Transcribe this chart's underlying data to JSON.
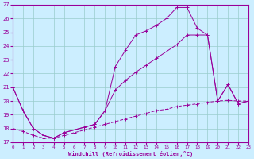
{
  "xlabel": "Windchill (Refroidissement éolien,°C)",
  "background_color": "#cceeff",
  "line_color": "#990099",
  "grid_color": "#99cccc",
  "xlim": [
    0,
    23
  ],
  "ylim": [
    17,
    27
  ],
  "xticks": [
    0,
    1,
    2,
    3,
    4,
    5,
    6,
    7,
    8,
    9,
    10,
    11,
    12,
    13,
    14,
    15,
    16,
    17,
    18,
    19,
    20,
    21,
    22,
    23
  ],
  "yticks": [
    17,
    18,
    19,
    20,
    21,
    22,
    23,
    24,
    25,
    26,
    27
  ],
  "curve1_x": [
    0,
    1,
    2,
    3,
    4,
    5,
    6,
    7,
    8,
    9,
    10,
    11,
    12,
    13,
    14,
    15,
    16,
    17,
    18,
    19,
    20,
    21,
    22,
    23
  ],
  "curve1_y": [
    21.0,
    19.3,
    18.0,
    17.5,
    17.3,
    17.7,
    17.9,
    18.1,
    18.3,
    19.3,
    22.5,
    23.7,
    24.8,
    25.1,
    25.5,
    26.0,
    26.8,
    26.8,
    25.3,
    24.8,
    20.0,
    21.2,
    19.8,
    20.0
  ],
  "curve2_x": [
    0,
    1,
    2,
    3,
    4,
    5,
    6,
    7,
    8,
    9,
    10,
    11,
    12,
    13,
    14,
    15,
    16,
    17,
    18,
    19,
    20,
    21,
    22,
    23
  ],
  "curve2_y": [
    21.0,
    19.3,
    18.0,
    17.5,
    17.3,
    17.7,
    17.9,
    18.1,
    18.3,
    19.3,
    20.8,
    21.5,
    22.1,
    22.6,
    23.1,
    23.6,
    24.1,
    24.8,
    24.8,
    24.8,
    20.0,
    21.2,
    19.8,
    20.0
  ],
  "curve3_x": [
    0,
    1,
    2,
    3,
    4,
    5,
    6,
    7,
    8,
    9,
    10,
    11,
    12,
    13,
    14,
    15,
    16,
    17,
    18,
    19,
    20,
    21,
    22,
    23
  ],
  "curve3_y": [
    18.0,
    17.8,
    17.5,
    17.3,
    17.3,
    17.5,
    17.7,
    17.9,
    18.1,
    18.3,
    18.5,
    18.7,
    18.9,
    19.1,
    19.3,
    19.4,
    19.6,
    19.7,
    19.8,
    19.9,
    20.0,
    20.05,
    20.0,
    20.0
  ]
}
